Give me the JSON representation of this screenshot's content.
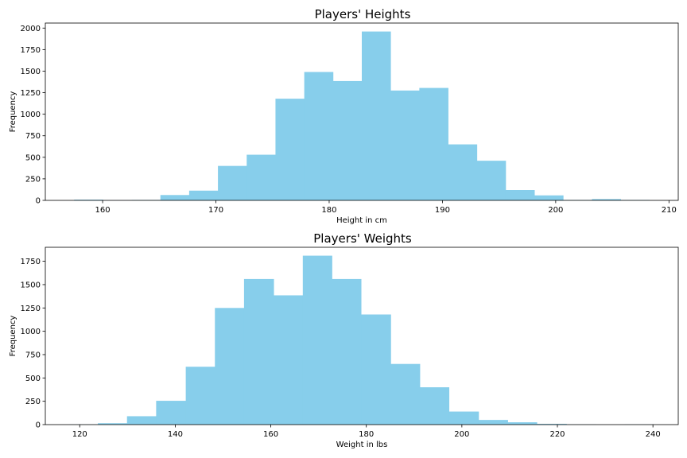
{
  "chart_data": [
    {
      "type": "bar",
      "title": "Players' Heights",
      "xlabel": "Height in cm",
      "ylabel": "Frequency",
      "bin_edges": [
        157.48,
        160.02,
        162.56,
        165.1,
        167.64,
        170.18,
        172.72,
        175.26,
        177.8,
        180.34,
        182.88,
        185.42,
        187.96,
        190.5,
        193.04,
        195.58,
        198.12,
        200.66,
        203.2,
        205.74,
        208.28
      ],
      "values": [
        8,
        2,
        5,
        62,
        113,
        400,
        530,
        1180,
        1490,
        1385,
        1960,
        1275,
        1305,
        650,
        460,
        120,
        58,
        5,
        15,
        5
      ],
      "xlim": [
        154.94,
        210.82
      ],
      "ylim": [
        0,
        2058
      ],
      "xticks": [
        160,
        170,
        180,
        190,
        200,
        210
      ],
      "yticks": [
        0,
        250,
        500,
        750,
        1000,
        1250,
        1500,
        1750,
        2000
      ],
      "grid": false,
      "color": "#87ceeb"
    },
    {
      "type": "bar",
      "title": "Players' Weights",
      "xlabel": "Weight in lbs",
      "ylabel": "Frequency",
      "bin_edges": [
        117.9,
        123.8,
        129.9,
        136.0,
        142.2,
        148.3,
        154.4,
        160.6,
        166.7,
        172.8,
        178.9,
        185.1,
        191.2,
        197.3,
        203.5,
        209.6,
        215.7,
        221.9,
        228.0,
        234.1,
        240.2
      ],
      "values": [
        2,
        15,
        90,
        255,
        620,
        1250,
        1560,
        1385,
        1810,
        1560,
        1180,
        650,
        400,
        140,
        50,
        25,
        8,
        2,
        0,
        2
      ],
      "xlim": [
        112.8,
        245.3
      ],
      "ylim": [
        0,
        1900
      ],
      "xticks": [
        120,
        140,
        160,
        180,
        200,
        220,
        240
      ],
      "yticks": [
        0,
        250,
        500,
        750,
        1000,
        1250,
        1500,
        1750
      ],
      "grid": false,
      "color": "#87ceeb"
    }
  ]
}
